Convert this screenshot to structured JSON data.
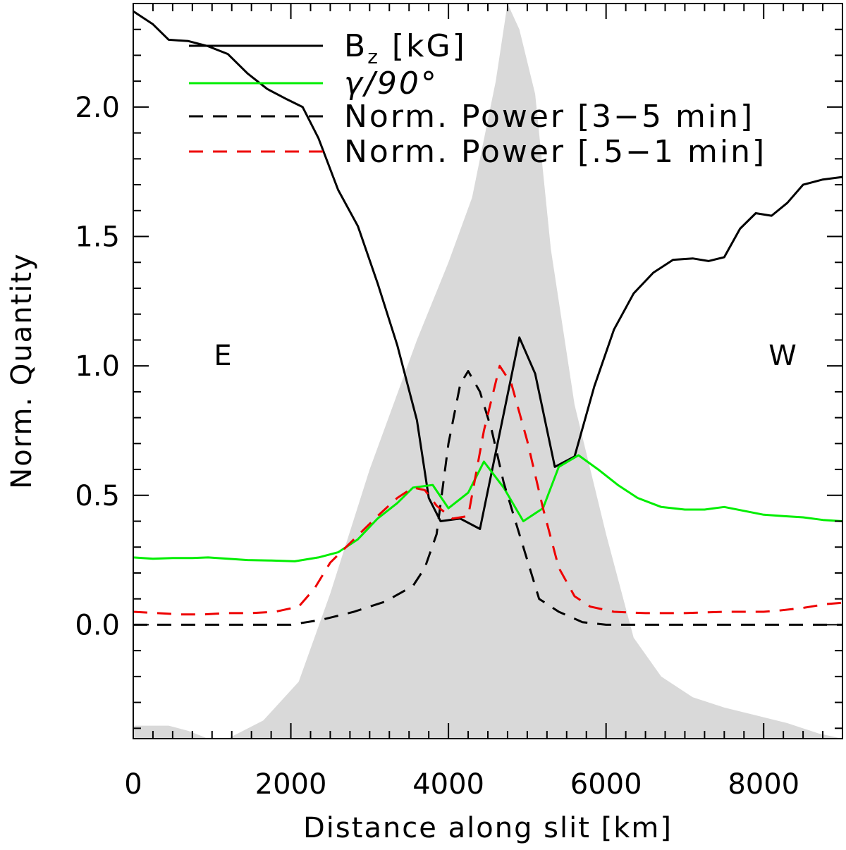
{
  "chart_data": {
    "type": "line",
    "title": "",
    "xlabel": "Distance along slit [km]",
    "ylabel": "Norm. Quantity",
    "xlim": [
      0,
      9000
    ],
    "ylim": [
      -0.44,
      2.4
    ],
    "xticks": [
      0,
      2000,
      4000,
      6000,
      8000
    ],
    "xtick_labels": [
      "0",
      "2000",
      "4000",
      "6000",
      "8000"
    ],
    "yticks": [
      0.0,
      0.5,
      1.0,
      1.5,
      2.0
    ],
    "ytick_labels": [
      "0.0",
      "0.5",
      "1.0",
      "1.5",
      "2.0"
    ],
    "grid": false,
    "legend_position": "top-center",
    "annotations": [
      {
        "text": "E",
        "x": 1150,
        "y": 1.0
      },
      {
        "text": "W",
        "x": 8320,
        "y": 1.0
      }
    ],
    "background_profile": {
      "name": "intensity profile (shaded)",
      "color": "#d9d9d9",
      "x": [
        0,
        450,
        700,
        950,
        1200,
        1650,
        2100,
        2500,
        3000,
        3600,
        4000,
        4300,
        4600,
        4750,
        4900,
        5100,
        5300,
        5600,
        6000,
        6350,
        6700,
        7100,
        7500,
        7900,
        8300,
        8700,
        9000
      ],
      "y": [
        -0.39,
        -0.39,
        -0.41,
        -0.44,
        -0.44,
        -0.37,
        -0.22,
        0.12,
        0.6,
        1.1,
        1.4,
        1.65,
        2.1,
        2.4,
        2.3,
        2.05,
        1.45,
        0.85,
        0.35,
        -0.05,
        -0.2,
        -0.28,
        -0.32,
        -0.35,
        -0.38,
        -0.42,
        -0.44
      ]
    },
    "series": [
      {
        "name": "Bz [kG]",
        "legend_label": "B",
        "legend_subscript": "z",
        "legend_unit": " [kG]",
        "color": "#000000",
        "style": "solid",
        "x": [
          0,
          250,
          450,
          700,
          950,
          1200,
          1450,
          1700,
          1950,
          2150,
          2350,
          2600,
          2850,
          3100,
          3350,
          3600,
          3750,
          3900,
          4150,
          4400,
          4650,
          4900,
          5100,
          5350,
          5600,
          5850,
          6100,
          6350,
          6600,
          6850,
          7100,
          7300,
          7500,
          7700,
          7900,
          8100,
          8300,
          8500,
          8750,
          9000
        ],
        "y": [
          2.37,
          2.32,
          2.26,
          2.255,
          2.235,
          2.205,
          2.13,
          2.07,
          2.03,
          2.0,
          1.88,
          1.68,
          1.54,
          1.32,
          1.08,
          0.79,
          0.49,
          0.4,
          0.41,
          0.37,
          0.74,
          1.11,
          0.97,
          0.61,
          0.65,
          0.92,
          1.14,
          1.28,
          1.36,
          1.41,
          1.415,
          1.405,
          1.42,
          1.53,
          1.59,
          1.58,
          1.63,
          1.7,
          1.72,
          1.73
        ]
      },
      {
        "name": "γ/90°",
        "legend_label": "γ/90°",
        "color": "#00ee00",
        "style": "solid",
        "x": [
          0,
          250,
          500,
          750,
          950,
          1200,
          1450,
          1750,
          2050,
          2350,
          2600,
          2850,
          3100,
          3350,
          3550,
          3800,
          4000,
          4250,
          4450,
          4700,
          4950,
          5200,
          5400,
          5650,
          5900,
          6150,
          6400,
          6700,
          7000,
          7250,
          7500,
          7750,
          8000,
          8250,
          8500,
          8750,
          9000
        ],
        "y": [
          0.26,
          0.255,
          0.258,
          0.258,
          0.26,
          0.255,
          0.25,
          0.248,
          0.245,
          0.26,
          0.28,
          0.33,
          0.41,
          0.47,
          0.53,
          0.54,
          0.45,
          0.51,
          0.63,
          0.53,
          0.4,
          0.45,
          0.61,
          0.655,
          0.6,
          0.54,
          0.49,
          0.455,
          0.445,
          0.445,
          0.455,
          0.44,
          0.425,
          0.42,
          0.415,
          0.405,
          0.4
        ]
      },
      {
        "name": "Norm. Power [3-5 min]",
        "legend_label": "Norm. Power [3−5 min]",
        "color": "#000000",
        "style": "dashed",
        "x": [
          0,
          400,
          800,
          1200,
          1600,
          2000,
          2400,
          2800,
          3200,
          3550,
          3700,
          3850,
          4000,
          4150,
          4250,
          4400,
          4550,
          4700,
          4850,
          5000,
          5150,
          5400,
          5700,
          6000,
          6500,
          7000,
          7500,
          8000,
          8500,
          9000
        ],
        "y": [
          0.0,
          0.0,
          0.0,
          0.0,
          0.0,
          0.0,
          0.02,
          0.05,
          0.09,
          0.15,
          0.22,
          0.35,
          0.7,
          0.93,
          0.98,
          0.9,
          0.75,
          0.55,
          0.4,
          0.25,
          0.1,
          0.05,
          0.01,
          0.0,
          0.0,
          0.0,
          0.0,
          0.0,
          0.0,
          0.0
        ]
      },
      {
        "name": "Norm. Power [.5-1 min]",
        "legend_label": "Norm. Power [.5−1 min]",
        "color": "#ee0000",
        "style": "dashed",
        "x": [
          0,
          300,
          600,
          900,
          1200,
          1500,
          1800,
          2100,
          2300,
          2500,
          2800,
          3100,
          3350,
          3550,
          3700,
          3850,
          4050,
          4250,
          4450,
          4650,
          4800,
          5000,
          5200,
          5400,
          5600,
          5800,
          6100,
          6500,
          7000,
          7500,
          8000,
          8200,
          8500,
          8800,
          9000
        ],
        "y": [
          0.05,
          0.045,
          0.04,
          0.04,
          0.045,
          0.045,
          0.05,
          0.07,
          0.14,
          0.24,
          0.33,
          0.42,
          0.49,
          0.53,
          0.52,
          0.46,
          0.41,
          0.42,
          0.75,
          1.0,
          0.93,
          0.71,
          0.45,
          0.22,
          0.11,
          0.07,
          0.05,
          0.045,
          0.045,
          0.05,
          0.05,
          0.055,
          0.065,
          0.08,
          0.085
        ]
      }
    ]
  }
}
